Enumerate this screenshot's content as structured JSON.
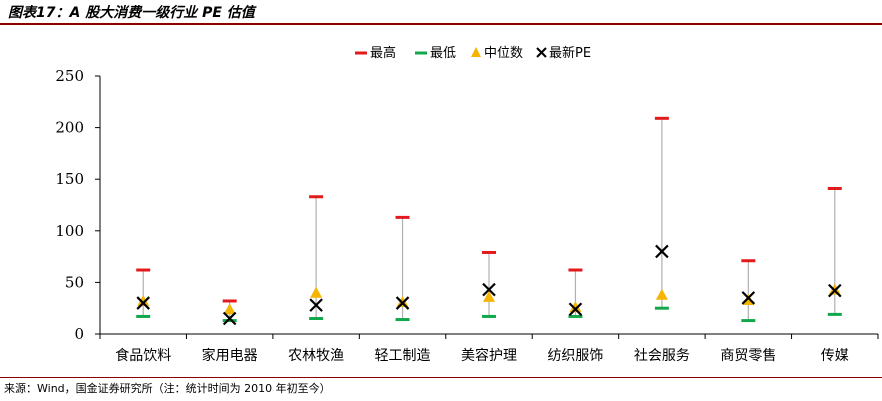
{
  "title": "图表17：A 股大消费一级行业 PE 估值",
  "source": "来源：Wind，国金证券研究所（注：统计时间为 2010 年初至今）",
  "colors": {
    "max": "#e31a1c",
    "min": "#10a84a",
    "median": "#f5b400",
    "latest": "#000000",
    "range_line": "#b0b0b0",
    "title_rule": "#8b0000"
  },
  "chart_data": {
    "type": "scatter",
    "title": "",
    "xlabel": "",
    "ylabel": "",
    "ylim": [
      0,
      250
    ],
    "yticks": [
      0,
      50,
      100,
      150,
      200,
      250
    ],
    "grid": false,
    "legend_position": "top-center",
    "categories": [
      "食品饮料",
      "家用电器",
      "农林牧渔",
      "轻工制造",
      "美容护理",
      "纺织服饰",
      "社会服务",
      "商贸零售",
      "传媒"
    ],
    "series": [
      {
        "name": "最高",
        "marker": "dash",
        "values": [
          62,
          32,
          133,
          113,
          79,
          62,
          209,
          71,
          141
        ]
      },
      {
        "name": "最低",
        "marker": "dash",
        "values": [
          17,
          13,
          15,
          14,
          17,
          17,
          25,
          13,
          19
        ]
      },
      {
        "name": "中位数",
        "marker": "triangle",
        "values": [
          32,
          24,
          40,
          31,
          36,
          26,
          38,
          33,
          43
        ]
      },
      {
        "name": "最新PE",
        "marker": "x",
        "values": [
          30,
          15,
          28,
          30,
          43,
          24,
          80,
          35,
          42
        ]
      }
    ]
  }
}
